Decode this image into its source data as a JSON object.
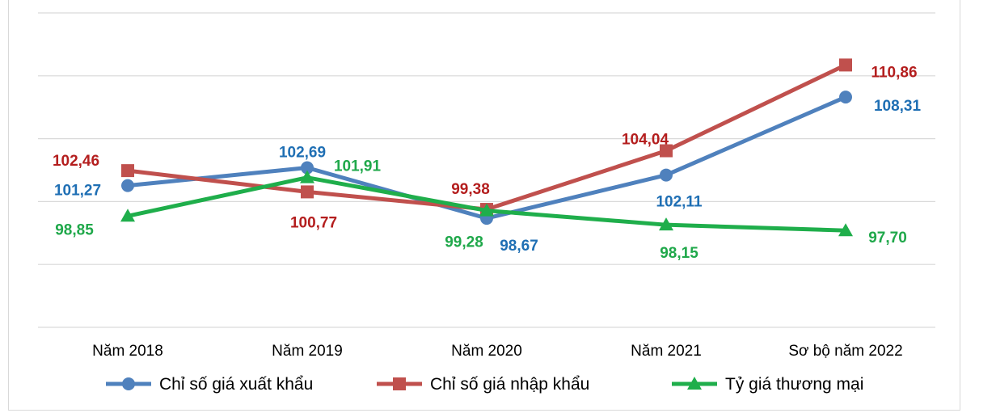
{
  "chart_data": {
    "type": "line",
    "title": "",
    "xlabel": "",
    "ylabel": "",
    "categories": [
      "Năm 2018",
      "Năm 2019",
      "Năm 2020",
      "Năm 2021",
      "Sơ bộ năm 2022"
    ],
    "ylim": [
      90,
      115
    ],
    "grid": true,
    "legend_position": "bottom",
    "series": [
      {
        "name": "Chỉ số giá xuất khẩu",
        "color": "#4F81BD",
        "label_color": "#1F6FB4",
        "marker": "circle",
        "values": [
          101.27,
          102.69,
          98.67,
          102.11,
          108.31
        ],
        "labels": [
          "101,27",
          "102,69",
          "98,67",
          "102,11",
          "108,31"
        ]
      },
      {
        "name": "Chỉ số giá nhập khẩu",
        "color": "#C0504D",
        "label_color": "#B41E1E",
        "marker": "square",
        "values": [
          102.46,
          100.77,
          99.38,
          104.04,
          110.86
        ],
        "labels": [
          "102,46",
          "100,77",
          "99,38",
          "104,04",
          "110,86"
        ]
      },
      {
        "name": "Tỷ giá thương mại",
        "color": "#1FAE4B",
        "label_color": "#1FA84A",
        "marker": "triangle",
        "values": [
          98.85,
          101.91,
          99.28,
          98.15,
          97.7
        ],
        "labels": [
          "98,85",
          "101,91",
          "99,28",
          "98,15",
          "97,70"
        ]
      }
    ]
  }
}
